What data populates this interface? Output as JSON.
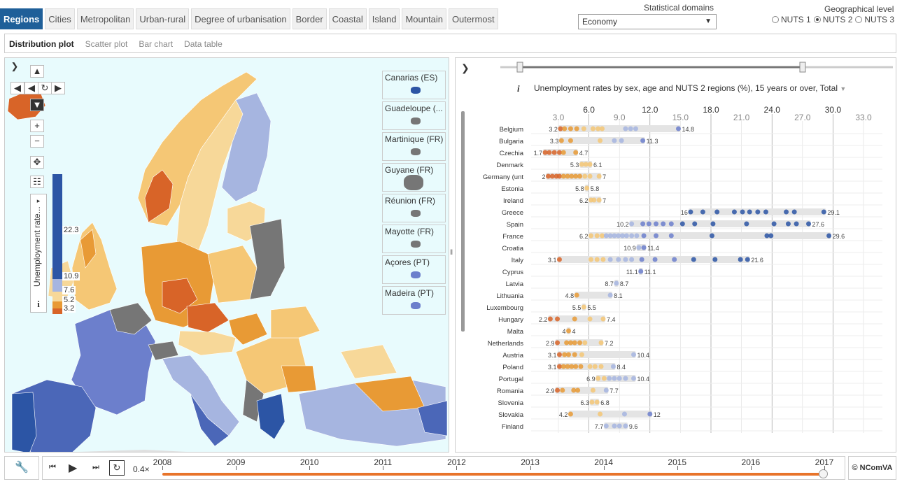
{
  "topnav": {
    "tabs": [
      {
        "label": "Regions",
        "active": true
      },
      {
        "label": "Cities"
      },
      {
        "label": "Metropolitan"
      },
      {
        "label": "Urban-rural"
      },
      {
        "label": "Degree of urbanisation"
      },
      {
        "label": "Border"
      },
      {
        "label": "Coastal"
      },
      {
        "label": "Island"
      },
      {
        "label": "Mountain"
      },
      {
        "label": "Outermost"
      }
    ]
  },
  "domains": {
    "label": "Statistical domains",
    "selected": "Economy"
  },
  "geo": {
    "label": "Geographical level",
    "options": [
      {
        "label": "NUTS 1",
        "checked": false
      },
      {
        "label": "NUTS 2",
        "checked": true
      },
      {
        "label": "NUTS 3",
        "checked": false
      }
    ]
  },
  "subtabs": [
    {
      "label": "Distribution plot",
      "active": true
    },
    {
      "label": "Scatter plot"
    },
    {
      "label": "Bar chart"
    },
    {
      "label": "Data table"
    }
  ],
  "map": {
    "legend_title": "Unemployment rate...",
    "legend_values": [
      "22.3",
      "10.9",
      "7.6",
      "5.2",
      "3.2"
    ],
    "legend_colors": [
      "#2c55a5",
      "#a6b5e0",
      "#f7d899",
      "#e89a35",
      "#d86428"
    ],
    "insets": [
      "Canarias (ES)",
      "Guadeloupe (...",
      "Martinique (FR)",
      "Guyane (FR)",
      "Réunion (FR)",
      "Mayotte (FR)",
      "Açores (PT)",
      "Madeira (PT)"
    ],
    "info_label": "i"
  },
  "chart": {
    "title": "Unemployment rates by sex, age and NUTS 2 regions (%), 15 years or over, Total",
    "info_label": "i",
    "chart_data": {
      "type": "scatter",
      "axis_ticks_upper": [
        6.0,
        12.0,
        18.0,
        24.0,
        30.0
      ],
      "axis_ticks_lower": [
        3.0,
        9.0,
        15.0,
        21.0,
        27.0,
        33.0
      ],
      "xlim": [
        3.0,
        33.0
      ],
      "countries": [
        {
          "name": "Belgium",
          "min": 3.2,
          "max": 14.8,
          "points": [
            3.2,
            3.6,
            4.2,
            4.8,
            5.5,
            6.4,
            6.9,
            7.3,
            9.6,
            10.1,
            10.6,
            14.8
          ]
        },
        {
          "name": "Bulgaria",
          "min": 3.3,
          "max": 11.3,
          "points": [
            3.3,
            4.2,
            7.1,
            8.5,
            9.2,
            11.3
          ]
        },
        {
          "name": "Czechia",
          "min": 1.7,
          "max": 4.7,
          "points": [
            1.7,
            2.1,
            2.6,
            3.1,
            3.5,
            4.7
          ]
        },
        {
          "name": "Denmark",
          "min": 5.3,
          "max": 6.1,
          "points": [
            5.3,
            5.7,
            6.1
          ]
        },
        {
          "name": "Germany (unt",
          "min": 2,
          "max": 7,
          "points": [
            2,
            2.4,
            2.8,
            3.1,
            3.5,
            3.9,
            4.3,
            4.7,
            5.1,
            5.6,
            6.1,
            7
          ]
        },
        {
          "name": "Estonia",
          "min": 5.8,
          "max": 5.8,
          "points": [
            5.8
          ]
        },
        {
          "name": "Ireland",
          "min": 6.2,
          "max": 7,
          "points": [
            6.2,
            6.5,
            7
          ]
        },
        {
          "name": "Greece",
          "min": 16,
          "max": 29.1,
          "points": [
            16,
            17.2,
            18.6,
            20.3,
            21.1,
            21.8,
            22.6,
            23.4,
            25.4,
            26.2,
            29.1
          ]
        },
        {
          "name": "Spain",
          "min": 10.2,
          "max": 27.6,
          "points": [
            10.2,
            11.3,
            11.9,
            12.6,
            13.3,
            14.1,
            15.2,
            16.4,
            18.2,
            21.5,
            24.2,
            25.6,
            26.4,
            27.6
          ]
        },
        {
          "name": "France",
          "min": 6.2,
          "max": 29.6,
          "points": [
            6.2,
            6.8,
            7.3,
            7.7,
            8.1,
            8.5,
            8.9,
            9.3,
            9.7,
            10.2,
            10.7,
            11.4,
            12.6,
            14.1,
            18.1,
            23.5,
            23.9,
            29.6
          ]
        },
        {
          "name": "Croatia",
          "min": 10.9,
          "max": 11.4,
          "points": [
            10.9,
            11.4
          ]
        },
        {
          "name": "Italy",
          "min": 3.1,
          "max": 21.6,
          "points": [
            3.1,
            6.2,
            6.8,
            7.4,
            8.1,
            8.9,
            9.6,
            10.2,
            11.2,
            12.5,
            14.4,
            16.3,
            18.4,
            20.9,
            21.6
          ]
        },
        {
          "name": "Cyprus",
          "min": 11.1,
          "max": 11.1,
          "points": [
            11.1
          ]
        },
        {
          "name": "Latvia",
          "min": 8.7,
          "max": 8.7,
          "points": [
            8.7
          ]
        },
        {
          "name": "Lithuania",
          "min": 4.8,
          "max": 8.1,
          "points": [
            4.8,
            8.1
          ]
        },
        {
          "name": "Luxembourg",
          "min": 5.5,
          "max": 5.5,
          "points": [
            5.5
          ]
        },
        {
          "name": "Hungary",
          "min": 2.2,
          "max": 7.4,
          "points": [
            2.2,
            2.9,
            4.6,
            6.1,
            7.4
          ]
        },
        {
          "name": "Malta",
          "min": 4,
          "max": 4,
          "points": [
            4
          ]
        },
        {
          "name": "Netherlands",
          "min": 2.9,
          "max": 7.2,
          "points": [
            2.9,
            3.8,
            4.2,
            4.6,
            5.1,
            5.6,
            7.2
          ]
        },
        {
          "name": "Austria",
          "min": 3.1,
          "max": 10.4,
          "points": [
            3.1,
            3.6,
            4.0,
            4.6,
            5.3,
            10.4
          ]
        },
        {
          "name": "Poland",
          "min": 3.1,
          "max": 8.4,
          "points": [
            3.1,
            3.5,
            3.9,
            4.3,
            4.7,
            5.2,
            6.1,
            6.6,
            7.2,
            8.4
          ]
        },
        {
          "name": "Portugal",
          "min": 6.9,
          "max": 10.4,
          "points": [
            6.9,
            7.5,
            8.0,
            8.5,
            9.0,
            9.6,
            10.4
          ]
        },
        {
          "name": "Romania",
          "min": 2.9,
          "max": 7.7,
          "points": [
            2.9,
            3.4,
            4.5,
            4.9,
            6.4,
            7.7
          ]
        },
        {
          "name": "Slovenia",
          "min": 6.3,
          "max": 6.8,
          "points": [
            6.3,
            6.8
          ]
        },
        {
          "name": "Slovakia",
          "min": 4.2,
          "max": 12,
          "points": [
            4.2,
            7.1,
            9.5,
            12
          ]
        },
        {
          "name": "Finland",
          "min": 7.7,
          "max": 9.6,
          "points": [
            7.7,
            8.5,
            9.0,
            9.6
          ]
        }
      ]
    }
  },
  "timeline": {
    "speed": "0.4×",
    "years": [
      "2008",
      "2009",
      "2010",
      "2011",
      "2012",
      "2013",
      "2014",
      "2015",
      "2016",
      "2017"
    ],
    "copyright": "© NComVA"
  }
}
